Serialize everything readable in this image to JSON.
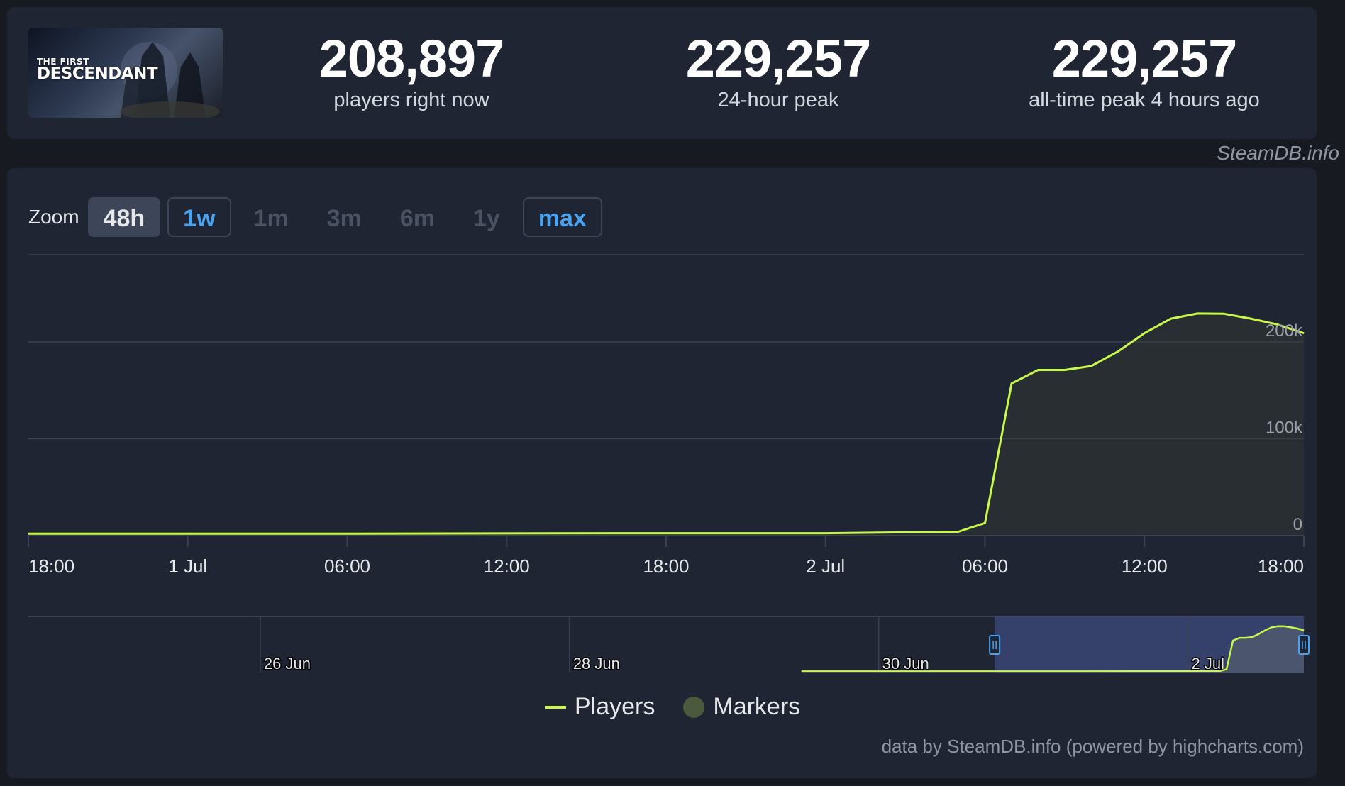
{
  "game": {
    "cover_line1": "THE FIRST",
    "cover_line2": "DESCENDANT"
  },
  "stats": [
    {
      "value": "208,897",
      "label": "players right now"
    },
    {
      "value": "229,257",
      "label": "24-hour peak"
    },
    {
      "value": "229,257",
      "label": "all-time peak 4 hours ago"
    }
  ],
  "watermark": "SteamDB.info",
  "zoom": {
    "label": "Zoom",
    "buttons": [
      {
        "label": "48h",
        "state": "active"
      },
      {
        "label": "1w",
        "state": "avail"
      },
      {
        "label": "1m",
        "state": "disabled"
      },
      {
        "label": "3m",
        "state": "disabled"
      },
      {
        "label": "6m",
        "state": "disabled"
      },
      {
        "label": "1y",
        "state": "disabled"
      },
      {
        "label": "max",
        "state": "avail"
      }
    ]
  },
  "legend": {
    "players": "Players",
    "markers": "Markers"
  },
  "credits": "data by SteamDB.info (powered by highcharts.com)",
  "colors": {
    "series": "#c9f74a",
    "accent": "#4aa3f0",
    "navigator_mask": "#3a4575"
  },
  "chart_data": {
    "type": "area",
    "series": [
      {
        "name": "Players",
        "points": [
          {
            "t": "2024-06-30 18:00",
            "v": 2000
          },
          {
            "t": "2024-07-01 06:00",
            "v": 2000
          },
          {
            "t": "2024-07-01 16:00",
            "v": 2500
          },
          {
            "t": "2024-07-02 00:00",
            "v": 2500
          },
          {
            "t": "2024-07-02 05:00",
            "v": 4000
          },
          {
            "t": "2024-07-02 06:00",
            "v": 13000
          },
          {
            "t": "2024-07-02 07:00",
            "v": 157000
          },
          {
            "t": "2024-07-02 08:00",
            "v": 171000
          },
          {
            "t": "2024-07-02 09:00",
            "v": 171000
          },
          {
            "t": "2024-07-02 10:00",
            "v": 175000
          },
          {
            "t": "2024-07-02 11:00",
            "v": 190000
          },
          {
            "t": "2024-07-02 12:00",
            "v": 209000
          },
          {
            "t": "2024-07-02 13:00",
            "v": 224000
          },
          {
            "t": "2024-07-02 14:00",
            "v": 229257
          },
          {
            "t": "2024-07-02 15:00",
            "v": 229000
          },
          {
            "t": "2024-07-02 16:00",
            "v": 224000
          },
          {
            "t": "2024-07-02 17:00",
            "v": 218000
          },
          {
            "t": "2024-07-02 18:00",
            "v": 208897
          }
        ]
      }
    ],
    "x_range": [
      "2024-06-30 18:00",
      "2024-07-02 18:00"
    ],
    "x_ticks": [
      {
        "t": "2024-06-30 18:00",
        "label": "18:00"
      },
      {
        "t": "2024-07-01 00:00",
        "label": "1 Jul"
      },
      {
        "t": "2024-07-01 06:00",
        "label": "06:00"
      },
      {
        "t": "2024-07-01 12:00",
        "label": "12:00"
      },
      {
        "t": "2024-07-01 18:00",
        "label": "18:00"
      },
      {
        "t": "2024-07-02 00:00",
        "label": "2 Jul"
      },
      {
        "t": "2024-07-02 06:00",
        "label": "06:00"
      },
      {
        "t": "2024-07-02 12:00",
        "label": "12:00"
      },
      {
        "t": "2024-07-02 18:00",
        "label": "18:00"
      }
    ],
    "ylim": [
      0,
      290000
    ],
    "y_ticks": [
      {
        "v": 0,
        "label": "0"
      },
      {
        "v": 100000,
        "label": "100k"
      },
      {
        "v": 200000,
        "label": "200k"
      }
    ],
    "grid": true,
    "navigator": {
      "x_range": [
        "2024-06-24 12:00",
        "2024-07-02 18:00"
      ],
      "ticks": [
        {
          "t": "2024-06-26 00:00",
          "label": "26 Jun"
        },
        {
          "t": "2024-06-28 00:00",
          "label": "28 Jun"
        },
        {
          "t": "2024-06-30 00:00",
          "label": "30 Jun"
        },
        {
          "t": "2024-07-02 00:00",
          "label": "2 Jul"
        }
      ],
      "data_start": "2024-06-29 12:00",
      "selected": [
        "2024-06-30 18:00",
        "2024-07-02 18:00"
      ]
    }
  }
}
